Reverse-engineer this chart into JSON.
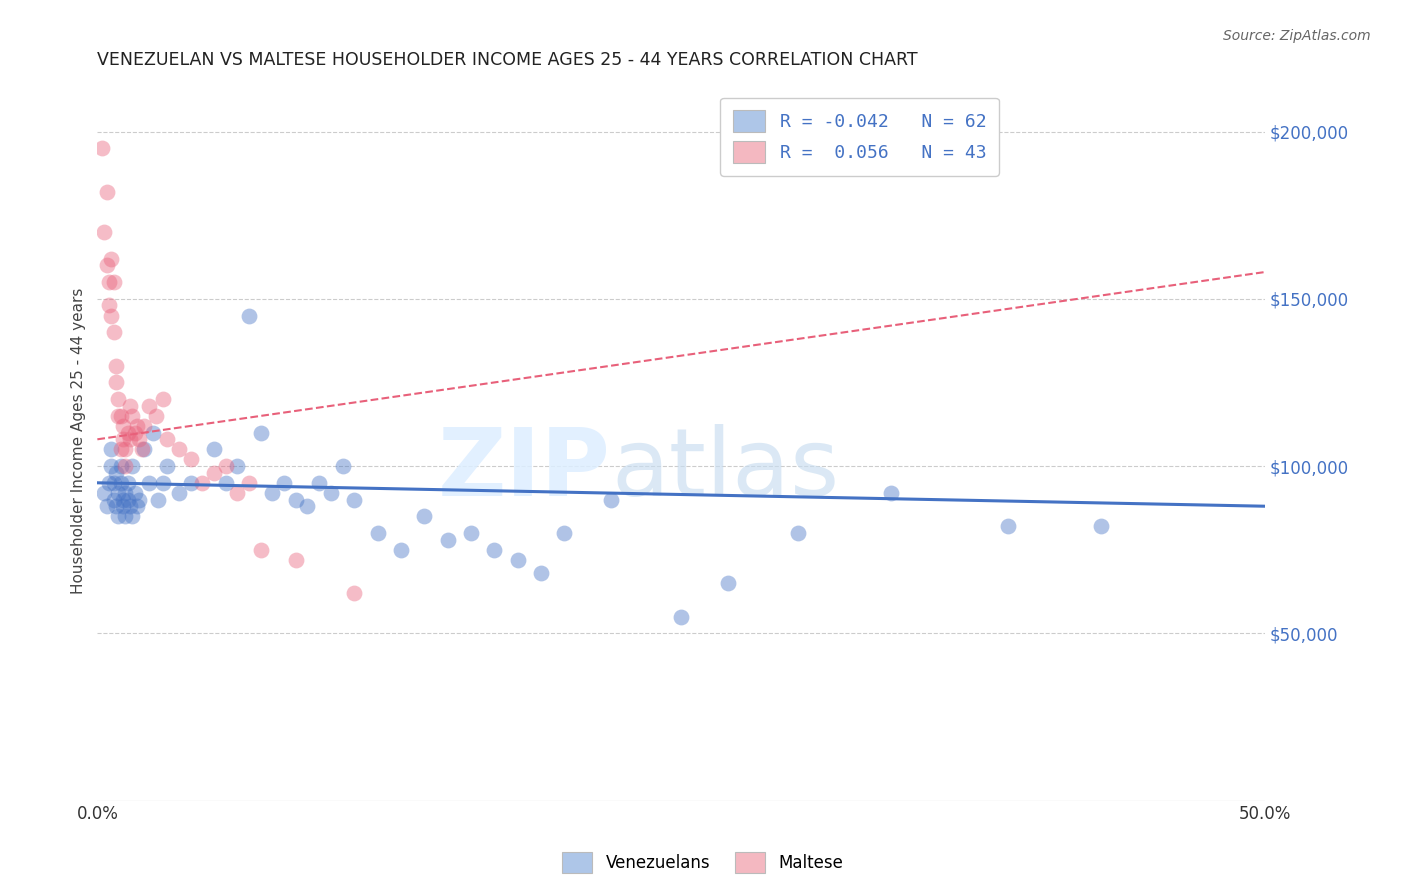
{
  "title": "VENEZUELAN VS MALTESE HOUSEHOLDER INCOME AGES 25 - 44 YEARS CORRELATION CHART",
  "source": "Source: ZipAtlas.com",
  "ylabel": "Householder Income Ages 25 - 44 years",
  "xlim": [
    0,
    0.5
  ],
  "ylim": [
    0,
    215000
  ],
  "ytick_positions": [
    50000,
    100000,
    150000,
    200000
  ],
  "ytick_labels": [
    "$50,000",
    "$100,000",
    "$150,000",
    "$200,000"
  ],
  "blue_color": "#4472c4",
  "pink_color": "#e8607a",
  "legend_labels_line1": "R = -0.042   N = 62",
  "legend_labels_line2": "R =  0.056   N = 43",
  "legend_face_blue": "#aec6e8",
  "legend_face_pink": "#f4b8c1",
  "venezuelan_x": [
    0.003,
    0.004,
    0.005,
    0.006,
    0.006,
    0.007,
    0.007,
    0.008,
    0.008,
    0.009,
    0.009,
    0.01,
    0.01,
    0.011,
    0.011,
    0.012,
    0.012,
    0.013,
    0.013,
    0.014,
    0.015,
    0.015,
    0.016,
    0.017,
    0.018,
    0.02,
    0.022,
    0.024,
    0.026,
    0.028,
    0.03,
    0.035,
    0.04,
    0.05,
    0.055,
    0.06,
    0.065,
    0.07,
    0.075,
    0.08,
    0.085,
    0.09,
    0.095,
    0.1,
    0.105,
    0.11,
    0.12,
    0.13,
    0.14,
    0.15,
    0.16,
    0.17,
    0.18,
    0.19,
    0.2,
    0.22,
    0.25,
    0.27,
    0.3,
    0.34,
    0.39,
    0.43
  ],
  "venezuelan_y": [
    92000,
    88000,
    95000,
    100000,
    105000,
    95000,
    90000,
    98000,
    88000,
    92000,
    85000,
    95000,
    100000,
    90000,
    88000,
    92000,
    85000,
    90000,
    95000,
    88000,
    100000,
    85000,
    92000,
    88000,
    90000,
    105000,
    95000,
    110000,
    90000,
    95000,
    100000,
    92000,
    95000,
    105000,
    95000,
    100000,
    145000,
    110000,
    92000,
    95000,
    90000,
    88000,
    95000,
    92000,
    100000,
    90000,
    80000,
    75000,
    85000,
    78000,
    80000,
    75000,
    72000,
    68000,
    80000,
    90000,
    55000,
    65000,
    80000,
    92000,
    82000,
    82000
  ],
  "maltese_x": [
    0.002,
    0.003,
    0.004,
    0.004,
    0.005,
    0.005,
    0.006,
    0.006,
    0.007,
    0.007,
    0.008,
    0.008,
    0.009,
    0.009,
    0.01,
    0.01,
    0.011,
    0.011,
    0.012,
    0.012,
    0.013,
    0.014,
    0.014,
    0.015,
    0.016,
    0.017,
    0.018,
    0.019,
    0.02,
    0.022,
    0.025,
    0.028,
    0.03,
    0.035,
    0.04,
    0.045,
    0.05,
    0.055,
    0.06,
    0.065,
    0.07,
    0.085,
    0.11
  ],
  "maltese_y": [
    195000,
    170000,
    182000,
    160000,
    155000,
    148000,
    162000,
    145000,
    155000,
    140000,
    130000,
    125000,
    120000,
    115000,
    115000,
    105000,
    112000,
    108000,
    105000,
    100000,
    110000,
    118000,
    108000,
    115000,
    110000,
    112000,
    108000,
    105000,
    112000,
    118000,
    115000,
    120000,
    108000,
    105000,
    102000,
    95000,
    98000,
    100000,
    92000,
    95000,
    75000,
    72000,
    62000
  ],
  "vline_x0": 0.0,
  "vline_x1": 0.5,
  "vline_y0": 95000,
  "vline_y1": 88000,
  "mline_x0": 0.0,
  "mline_x1": 0.5,
  "mline_y0": 108000,
  "mline_y1": 158000
}
